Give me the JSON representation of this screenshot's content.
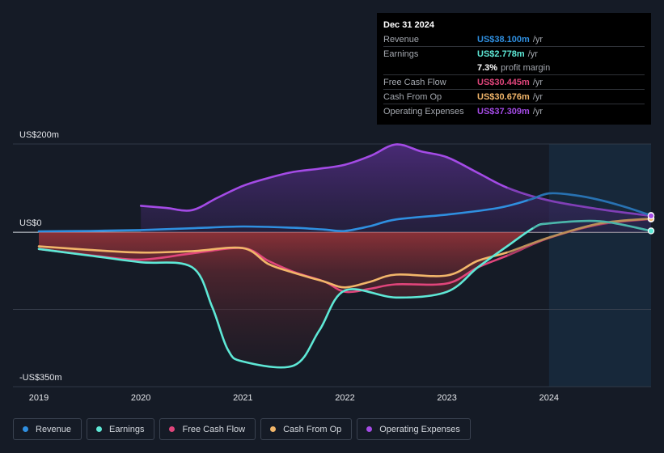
{
  "tooltip": {
    "date": "Dec 31 2024",
    "rows": [
      {
        "label": "Revenue",
        "value": "US$38.100m",
        "unit": "/yr",
        "color": "#2f8fe0"
      },
      {
        "label": "Earnings",
        "value": "US$2.778m",
        "unit": "/yr",
        "color": "#5ee8d6"
      },
      {
        "label": "Free Cash Flow",
        "value": "US$30.445m",
        "unit": "/yr",
        "color": "#e0457b"
      },
      {
        "label": "Cash From Op",
        "value": "US$30.676m",
        "unit": "/yr",
        "color": "#f2b66a"
      },
      {
        "label": "Operating Expenses",
        "value": "US$37.309m",
        "unit": "/yr",
        "color": "#a44be6"
      }
    ],
    "margin_pct": "7.3%",
    "margin_text": "profit margin"
  },
  "legend": [
    {
      "label": "Revenue",
      "color": "#2f8fe0"
    },
    {
      "label": "Earnings",
      "color": "#5ee8d6"
    },
    {
      "label": "Free Cash Flow",
      "color": "#e0457b"
    },
    {
      "label": "Cash From Op",
      "color": "#f2b66a"
    },
    {
      "label": "Operating Expenses",
      "color": "#a44be6"
    }
  ],
  "chart_data": {
    "type": "area",
    "title": "",
    "xlabel": "",
    "ylabel": "",
    "ylim": [
      -350,
      200
    ],
    "xlim": [
      2019,
      2025
    ],
    "x_ticks": [
      "2019",
      "2020",
      "2021",
      "2022",
      "2023",
      "2024"
    ],
    "y_tick_labels": [
      {
        "value": 200,
        "label": "US$200m"
      },
      {
        "value": 0,
        "label": "US$0"
      },
      {
        "value": -350,
        "label": "-US$350m"
      }
    ],
    "forecast_start": 2024,
    "series": [
      {
        "name": "Revenue",
        "color": "#2f8fe0",
        "x": [
          2019.0,
          2019.5,
          2020.0,
          2020.5,
          2021.0,
          2021.5,
          2021.8,
          2022.0,
          2022.25,
          2022.5,
          2023.0,
          2023.5,
          2023.8,
          2024.0,
          2024.25,
          2024.5,
          2024.75,
          2025.0
        ],
        "values": [
          2,
          3,
          5,
          9,
          13,
          10,
          6,
          3,
          14,
          29,
          40,
          55,
          73,
          88,
          84,
          73,
          57,
          38
        ]
      },
      {
        "name": "Earnings",
        "color": "#5ee8d6",
        "x": [
          2019.0,
          2019.5,
          2020.0,
          2020.5,
          2020.7,
          2020.85,
          2021.0,
          2021.5,
          2021.75,
          2022.0,
          2022.5,
          2023.0,
          2023.3,
          2023.6,
          2023.85,
          2024.0,
          2024.5,
          2025.0
        ],
        "values": [
          -38,
          -53,
          -68,
          -79,
          -170,
          -265,
          -293,
          -302,
          -222,
          -132,
          -148,
          -135,
          -80,
          -30,
          10,
          20,
          25,
          3
        ]
      },
      {
        "name": "Free Cash Flow",
        "color": "#e0457b",
        "x": [
          2019.0,
          2019.5,
          2020.0,
          2020.5,
          2021.0,
          2021.25,
          2021.5,
          2021.8,
          2022.0,
          2022.25,
          2022.5,
          2023.0,
          2023.3,
          2023.6,
          2024.0,
          2024.5,
          2025.0
        ],
        "values": [
          -38,
          -52,
          -62,
          -48,
          -36,
          -65,
          -90,
          -112,
          -135,
          -128,
          -118,
          -116,
          -80,
          -52,
          -13,
          18,
          30
        ]
      },
      {
        "name": "Cash From Op",
        "color": "#f2b66a",
        "x": [
          2019.0,
          2019.5,
          2020.0,
          2020.5,
          2021.0,
          2021.25,
          2021.5,
          2021.8,
          2022.0,
          2022.25,
          2022.5,
          2023.0,
          2023.3,
          2023.6,
          2024.0,
          2024.5,
          2025.0
        ],
        "values": [
          -32,
          -40,
          -46,
          -43,
          -36,
          -72,
          -92,
          -112,
          -125,
          -112,
          -96,
          -98,
          -65,
          -45,
          -12,
          20,
          31
        ]
      },
      {
        "name": "Operating Expenses",
        "color": "#a44be6",
        "x": [
          2020.0,
          2020.25,
          2020.5,
          2020.75,
          2021.0,
          2021.25,
          2021.5,
          2021.75,
          2022.0,
          2022.25,
          2022.5,
          2022.75,
          2023.0,
          2023.3,
          2023.6,
          2024.0,
          2024.5,
          2025.0
        ],
        "values": [
          60,
          55,
          50,
          78,
          105,
          123,
          137,
          144,
          153,
          173,
          199,
          183,
          170,
          135,
          100,
          72,
          52,
          37
        ]
      }
    ]
  }
}
